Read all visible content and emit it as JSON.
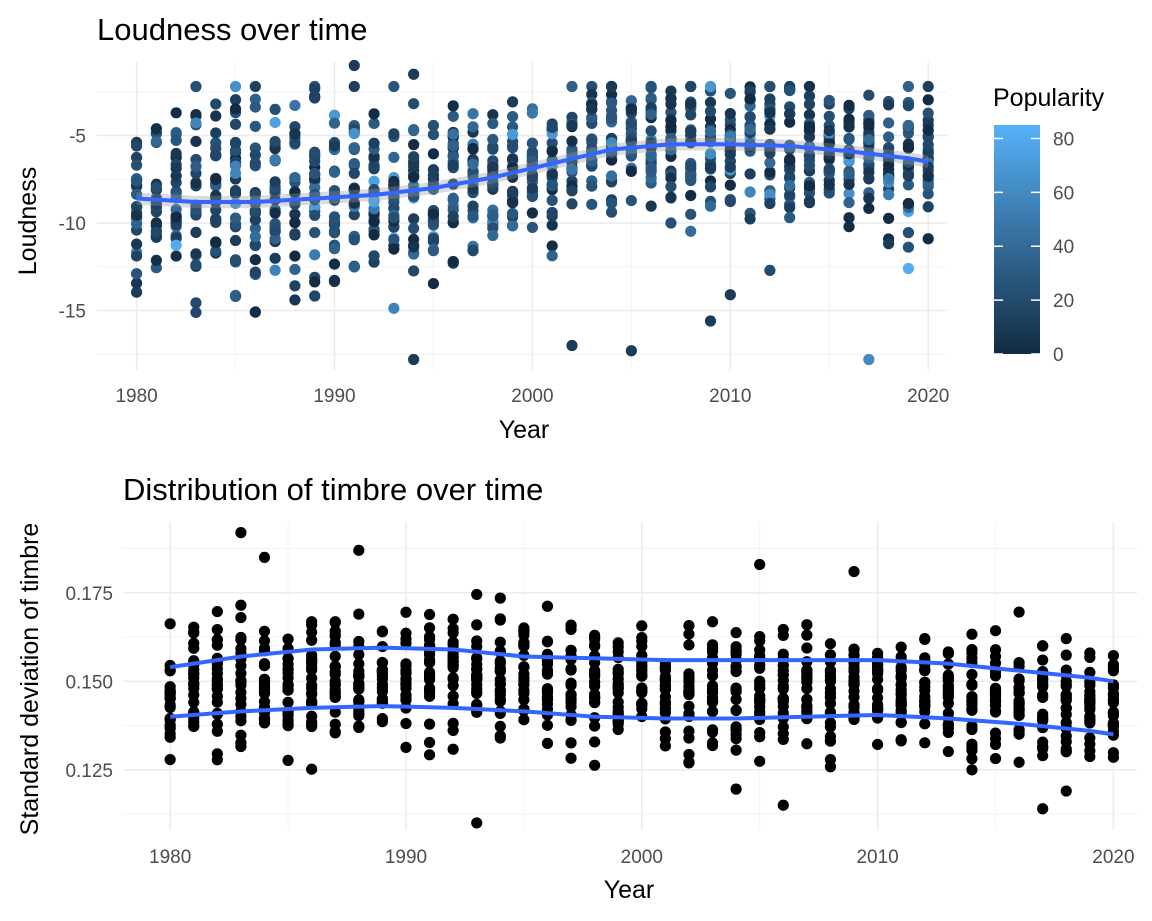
{
  "chart_data": [
    {
      "type": "scatter",
      "title": "Loudness over time",
      "xlabel": "Year",
      "ylabel": "Loudness",
      "xlim": [
        1978,
        2021
      ],
      "ylim": [
        -18.4,
        -0.8
      ],
      "x_ticks": [
        1980,
        1990,
        2000,
        2010,
        2020
      ],
      "y_ticks": [
        -15,
        -10,
        -5
      ],
      "grid": true,
      "legend": {
        "title": "Popularity",
        "position": "right",
        "min": 0,
        "max": 85,
        "ticks": [
          0,
          20,
          40,
          60,
          80
        ],
        "color_low": "#132B43",
        "color_high": "#56B1F7"
      },
      "point_summary": {
        "years": [
          1980,
          2020
        ],
        "points_per_year": 26,
        "mean_popularity": 18
      },
      "outliers": [
        {
          "x": 1991,
          "y": -1.0,
          "popularity": 10
        },
        {
          "x": 1994,
          "y": -1.5,
          "popularity": 10
        },
        {
          "x": 1994,
          "y": -17.8,
          "popularity": 10
        },
        {
          "x": 2002,
          "y": -17.0,
          "popularity": 10
        },
        {
          "x": 2005,
          "y": -17.3,
          "popularity": 10
        },
        {
          "x": 2009,
          "y": -15.6,
          "popularity": 10
        },
        {
          "x": 2017,
          "y": -17.8,
          "popularity": 60
        },
        {
          "x": 2019,
          "y": -12.6,
          "popularity": 82
        },
        {
          "x": 2010,
          "y": -14.1,
          "popularity": 10
        },
        {
          "x": 1987,
          "y": -12.7,
          "popularity": 55
        }
      ],
      "smooth": {
        "color": "#3366FF",
        "x": [
          1980,
          1983,
          1986,
          1989,
          1992,
          1995,
          1998,
          2001,
          2004,
          2007,
          2010,
          2013,
          2016,
          2019,
          2020
        ],
        "y": [
          -8.6,
          -8.8,
          -8.8,
          -8.6,
          -8.4,
          -8.0,
          -7.4,
          -6.6,
          -5.8,
          -5.5,
          -5.5,
          -5.6,
          -5.9,
          -6.3,
          -6.5
        ]
      }
    },
    {
      "type": "scatter",
      "title": "Distribution of timbre over time",
      "xlabel": "Year",
      "ylabel": "Standard deviation of timbre",
      "xlim": [
        1978,
        2021
      ],
      "ylim": [
        0.108,
        0.195
      ],
      "x_ticks": [
        1980,
        1990,
        2000,
        2010,
        2020
      ],
      "y_ticks": [
        0.125,
        0.15,
        0.175
      ],
      "y_tick_labels": [
        "0.125",
        "0.150",
        "0.175"
      ],
      "grid": true,
      "point_color": "#000000",
      "point_summary": {
        "years": [
          1980,
          2020
        ],
        "points_per_year": 24
      },
      "outliers": [
        {
          "x": 1983,
          "y": 0.192
        },
        {
          "x": 1984,
          "y": 0.185
        },
        {
          "x": 1988,
          "y": 0.187
        },
        {
          "x": 1993,
          "y": 0.11
        },
        {
          "x": 2005,
          "y": 0.183
        },
        {
          "x": 2006,
          "y": 0.115
        },
        {
          "x": 2017,
          "y": 0.114
        },
        {
          "x": 2009,
          "y": 0.181
        }
      ],
      "smooth_upper": {
        "color": "#3366FF",
        "x": [
          1980,
          1983,
          1986,
          1989,
          1992,
          1995,
          1998,
          2001,
          2004,
          2007,
          2010,
          2013,
          2016,
          2019,
          2020
        ],
        "y": [
          0.154,
          0.157,
          0.159,
          0.1595,
          0.159,
          0.157,
          0.1565,
          0.156,
          0.156,
          0.156,
          0.156,
          0.155,
          0.153,
          0.151,
          0.15
        ]
      },
      "smooth_lower": {
        "color": "#3366FF",
        "x": [
          1980,
          1983,
          1986,
          1989,
          1992,
          1995,
          1998,
          2001,
          2004,
          2007,
          2010,
          2013,
          2016,
          2019,
          2020
        ],
        "y": [
          0.14,
          0.1415,
          0.1425,
          0.143,
          0.1425,
          0.1415,
          0.14,
          0.1395,
          0.1395,
          0.14,
          0.1405,
          0.1395,
          0.138,
          0.136,
          0.135
        ]
      }
    }
  ]
}
